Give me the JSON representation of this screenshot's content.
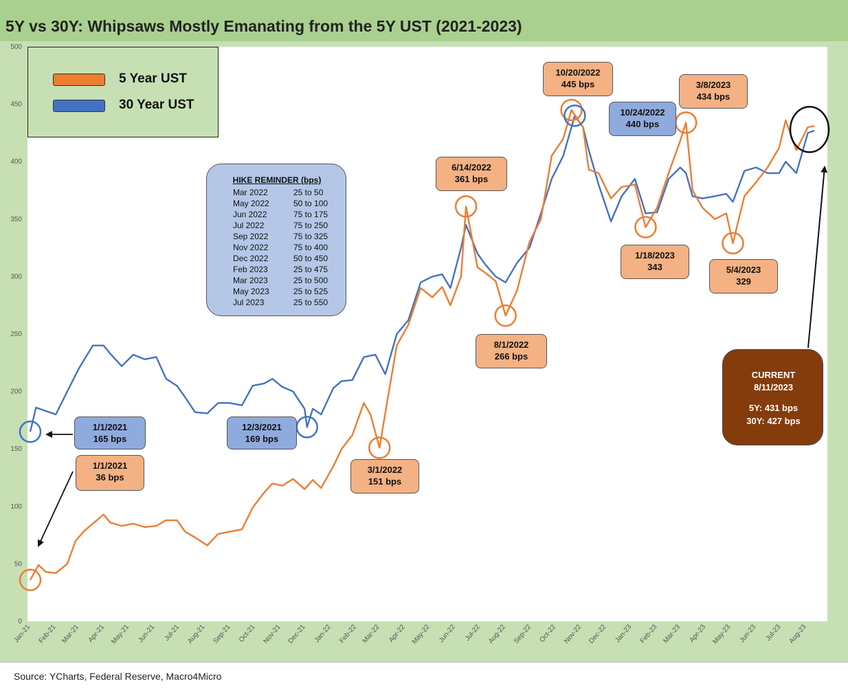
{
  "title": "5Y vs 30Y: Whipsaws Mostly Emanating from the 5Y UST (2021-2023)",
  "source": "Source: YCharts, Federal Reserve, Macro4Micro",
  "colors": {
    "five_year": "#ed7d31",
    "thirty_year": "#4472c4",
    "frame": "#c6e0b4",
    "title_bar": "#a9d08e",
    "current_box": "#843c0c"
  },
  "legend": {
    "five_year": "5 Year UST",
    "thirty_year": "30 Year UST"
  },
  "hike_reminder": {
    "title": "HIKE REMINDER (bps)",
    "rows": [
      {
        "month": "Mar 2022",
        "hike": "25 to 50"
      },
      {
        "month": "May 2022",
        "hike": "50 to 100"
      },
      {
        "month": "Jun 2022",
        "hike": "75 to 175"
      },
      {
        "month": "Jul 2022",
        "hike": "75 to 250"
      },
      {
        "month": "Sep 2022",
        "hike": "75 to 325"
      },
      {
        "month": "Nov 2022",
        "hike": "75 to 400"
      },
      {
        "month": "Dec 2022",
        "hike": "50 to 450"
      },
      {
        "month": "Feb 2023",
        "hike": "25 to 475"
      },
      {
        "month": "Mar 2023",
        "hike": "25 to 500"
      },
      {
        "month": "May 2023",
        "hike": "25 to 525"
      },
      {
        "month": "Jul 2023",
        "hike": "25 to 550"
      }
    ]
  },
  "current": {
    "label": "CURRENT",
    "date": "8/11/2023",
    "five_year": "5Y: 431 bps",
    "thirty_year": "30Y: 427 bps"
  },
  "annotations": [
    {
      "id": "a30-start",
      "series": "30Y",
      "date_label": "1/1/2021",
      "value_label": "165 bps"
    },
    {
      "id": "a5-start",
      "series": "5Y",
      "date_label": "1/1/2021",
      "value_label": "36 bps"
    },
    {
      "id": "a30-dec21",
      "series": "30Y",
      "date_label": "12/3/2021",
      "value_label": "169 bps"
    },
    {
      "id": "a5-mar22",
      "series": "5Y",
      "date_label": "3/1/2022",
      "value_label": "151 bps"
    },
    {
      "id": "a5-jun22",
      "series": "5Y",
      "date_label": "6/14/2022",
      "value_label": "361 bps"
    },
    {
      "id": "a5-aug22",
      "series": "5Y",
      "date_label": "8/1/2022",
      "value_label": "266 bps"
    },
    {
      "id": "a5-oct22",
      "series": "5Y",
      "date_label": "10/20/2022",
      "value_label": "445 bps"
    },
    {
      "id": "a30-oct22",
      "series": "30Y",
      "date_label": "10/24/2022",
      "value_label": "440 bps"
    },
    {
      "id": "a5-jan23",
      "series": "5Y",
      "date_label": "1/18/2023",
      "value_label": "343"
    },
    {
      "id": "a5-mar23",
      "series": "5Y",
      "date_label": "3/8/2023",
      "value_label": "434 bps"
    },
    {
      "id": "a5-may23",
      "series": "5Y",
      "date_label": "5/4/2023",
      "value_label": "329"
    }
  ],
  "chart_data": {
    "type": "line",
    "title": "5Y vs 30Y: Whipsaws Mostly Emanating from the 5Y UST (2021-2023)",
    "xlabel": "",
    "ylabel": "",
    "ylim": [
      0,
      500
    ],
    "yticks": [
      0,
      50,
      100,
      150,
      200,
      250,
      300,
      350,
      400,
      450,
      500
    ],
    "xlim": [
      "2021-01-01",
      "2023-08-20"
    ],
    "x_tick_labels": [
      "Jan-21",
      "Feb-21",
      "Mar-21",
      "Apr-21",
      "May-21",
      "Jun-21",
      "Jul-21",
      "Aug-21",
      "Sep-21",
      "Oct-21",
      "Nov-21",
      "Dec-21",
      "Jan-22",
      "Feb-22",
      "Mar-22",
      "Apr-22",
      "May-22",
      "Jun-22",
      "Jul-22",
      "Aug-22",
      "Sep-22",
      "Oct-22",
      "Nov-22",
      "Dec-22",
      "Jan-23",
      "Feb-23",
      "Mar-23",
      "Apr-23",
      "May-23",
      "Jun-23",
      "Jul-23",
      "Aug-23"
    ],
    "x_tick_dates": [
      "2021-01-01",
      "2021-02-01",
      "2021-03-01",
      "2021-04-01",
      "2021-05-01",
      "2021-06-01",
      "2021-07-01",
      "2021-08-01",
      "2021-09-01",
      "2021-10-01",
      "2021-11-01",
      "2021-12-01",
      "2022-01-01",
      "2022-02-01",
      "2022-03-01",
      "2022-04-01",
      "2022-05-01",
      "2022-06-01",
      "2022-07-01",
      "2022-08-01",
      "2022-09-01",
      "2022-10-01",
      "2022-11-01",
      "2022-12-01",
      "2023-01-01",
      "2023-02-01",
      "2023-03-01",
      "2023-04-01",
      "2023-05-01",
      "2023-06-01",
      "2023-07-01",
      "2023-08-01"
    ],
    "grid": false,
    "legend_position": "top-left",
    "series": [
      {
        "name": "5 Year UST",
        "points": [
          [
            "2021-01-01",
            36
          ],
          [
            "2021-01-11",
            49
          ],
          [
            "2021-01-20",
            43
          ],
          [
            "2021-02-01",
            42
          ],
          [
            "2021-02-15",
            50
          ],
          [
            "2021-02-25",
            70
          ],
          [
            "2021-03-08",
            79
          ],
          [
            "2021-03-18",
            85
          ],
          [
            "2021-03-31",
            93
          ],
          [
            "2021-04-08",
            86
          ],
          [
            "2021-04-22",
            83
          ],
          [
            "2021-05-06",
            85
          ],
          [
            "2021-05-20",
            82
          ],
          [
            "2021-06-03",
            83
          ],
          [
            "2021-06-15",
            88
          ],
          [
            "2021-06-28",
            88
          ],
          [
            "2021-07-08",
            78
          ],
          [
            "2021-07-20",
            73
          ],
          [
            "2021-08-04",
            66
          ],
          [
            "2021-08-17",
            76
          ],
          [
            "2021-08-31",
            78
          ],
          [
            "2021-09-15",
            80
          ],
          [
            "2021-09-28",
            99
          ],
          [
            "2021-10-12",
            112
          ],
          [
            "2021-10-22",
            120
          ],
          [
            "2021-11-03",
            118
          ],
          [
            "2021-11-16",
            124
          ],
          [
            "2021-11-30",
            115
          ],
          [
            "2021-12-10",
            123
          ],
          [
            "2021-12-20",
            116
          ],
          [
            "2022-01-04",
            135
          ],
          [
            "2022-01-14",
            150
          ],
          [
            "2022-01-27",
            162
          ],
          [
            "2022-02-10",
            190
          ],
          [
            "2022-02-18",
            180
          ],
          [
            "2022-03-01",
            151
          ],
          [
            "2022-03-10",
            190
          ],
          [
            "2022-03-22",
            240
          ],
          [
            "2022-04-05",
            258
          ],
          [
            "2022-04-20",
            290
          ],
          [
            "2022-05-04",
            282
          ],
          [
            "2022-05-16",
            291
          ],
          [
            "2022-05-26",
            275
          ],
          [
            "2022-06-08",
            300
          ],
          [
            "2022-06-14",
            361
          ],
          [
            "2022-06-28",
            308
          ],
          [
            "2022-07-08",
            303
          ],
          [
            "2022-07-20",
            296
          ],
          [
            "2022-08-01",
            266
          ],
          [
            "2022-08-15",
            288
          ],
          [
            "2022-08-30",
            330
          ],
          [
            "2022-09-13",
            350
          ],
          [
            "2022-09-26",
            405
          ],
          [
            "2022-10-10",
            420
          ],
          [
            "2022-10-20",
            445
          ],
          [
            "2022-11-03",
            430
          ],
          [
            "2022-11-10",
            393
          ],
          [
            "2022-11-22",
            390
          ],
          [
            "2022-12-07",
            368
          ],
          [
            "2022-12-20",
            378
          ],
          [
            "2023-01-05",
            380
          ],
          [
            "2023-01-18",
            343
          ],
          [
            "2023-02-01",
            360
          ],
          [
            "2023-02-15",
            390
          ],
          [
            "2023-03-01",
            418
          ],
          [
            "2023-03-08",
            434
          ],
          [
            "2023-03-16",
            375
          ],
          [
            "2023-03-28",
            360
          ],
          [
            "2023-04-12",
            350
          ],
          [
            "2023-04-26",
            355
          ],
          [
            "2023-05-04",
            329
          ],
          [
            "2023-05-18",
            370
          ],
          [
            "2023-06-01",
            382
          ],
          [
            "2023-06-15",
            395
          ],
          [
            "2023-06-29",
            412
          ],
          [
            "2023-07-07",
            436
          ],
          [
            "2023-07-20",
            410
          ],
          [
            "2023-08-03",
            430
          ],
          [
            "2023-08-11",
            431
          ]
        ]
      },
      {
        "name": "30 Year UST",
        "points": [
          [
            "2021-01-01",
            165
          ],
          [
            "2021-01-08",
            186
          ],
          [
            "2021-01-20",
            183
          ],
          [
            "2021-02-01",
            180
          ],
          [
            "2021-02-15",
            200
          ],
          [
            "2021-03-01",
            220
          ],
          [
            "2021-03-18",
            240
          ],
          [
            "2021-03-31",
            240
          ],
          [
            "2021-04-08",
            233
          ],
          [
            "2021-04-22",
            222
          ],
          [
            "2021-05-06",
            232
          ],
          [
            "2021-05-20",
            228
          ],
          [
            "2021-06-03",
            230
          ],
          [
            "2021-06-15",
            211
          ],
          [
            "2021-06-28",
            205
          ],
          [
            "2021-07-08",
            195
          ],
          [
            "2021-07-20",
            182
          ],
          [
            "2021-08-04",
            181
          ],
          [
            "2021-08-17",
            190
          ],
          [
            "2021-08-31",
            190
          ],
          [
            "2021-09-15",
            188
          ],
          [
            "2021-09-28",
            205
          ],
          [
            "2021-10-12",
            207
          ],
          [
            "2021-10-22",
            211
          ],
          [
            "2021-11-03",
            204
          ],
          [
            "2021-11-16",
            200
          ],
          [
            "2021-11-30",
            185
          ],
          [
            "2021-12-03",
            169
          ],
          [
            "2021-12-10",
            185
          ],
          [
            "2021-12-20",
            180
          ],
          [
            "2022-01-04",
            203
          ],
          [
            "2022-01-14",
            209
          ],
          [
            "2022-01-27",
            210
          ],
          [
            "2022-02-10",
            230
          ],
          [
            "2022-02-24",
            232
          ],
          [
            "2022-03-08",
            215
          ],
          [
            "2022-03-22",
            250
          ],
          [
            "2022-04-05",
            262
          ],
          [
            "2022-04-20",
            295
          ],
          [
            "2022-05-04",
            300
          ],
          [
            "2022-05-16",
            302
          ],
          [
            "2022-05-26",
            290
          ],
          [
            "2022-06-08",
            325
          ],
          [
            "2022-06-14",
            345
          ],
          [
            "2022-06-28",
            320
          ],
          [
            "2022-07-08",
            310
          ],
          [
            "2022-07-20",
            300
          ],
          [
            "2022-08-01",
            295
          ],
          [
            "2022-08-15",
            312
          ],
          [
            "2022-08-30",
            325
          ],
          [
            "2022-09-13",
            355
          ],
          [
            "2022-09-26",
            385
          ],
          [
            "2022-10-10",
            405
          ],
          [
            "2022-10-24",
            440
          ],
          [
            "2022-11-03",
            430
          ],
          [
            "2022-11-10",
            410
          ],
          [
            "2022-11-22",
            380
          ],
          [
            "2022-12-07",
            348
          ],
          [
            "2022-12-20",
            370
          ],
          [
            "2023-01-05",
            385
          ],
          [
            "2023-01-18",
            355
          ],
          [
            "2023-02-01",
            356
          ],
          [
            "2023-02-15",
            385
          ],
          [
            "2023-03-01",
            395
          ],
          [
            "2023-03-08",
            390
          ],
          [
            "2023-03-16",
            370
          ],
          [
            "2023-03-28",
            368
          ],
          [
            "2023-04-12",
            370
          ],
          [
            "2023-04-26",
            372
          ],
          [
            "2023-05-04",
            365
          ],
          [
            "2023-05-18",
            392
          ],
          [
            "2023-06-01",
            395
          ],
          [
            "2023-06-15",
            390
          ],
          [
            "2023-06-29",
            390
          ],
          [
            "2023-07-07",
            400
          ],
          [
            "2023-07-20",
            390
          ],
          [
            "2023-08-03",
            425
          ],
          [
            "2023-08-11",
            427
          ]
        ]
      }
    ]
  }
}
